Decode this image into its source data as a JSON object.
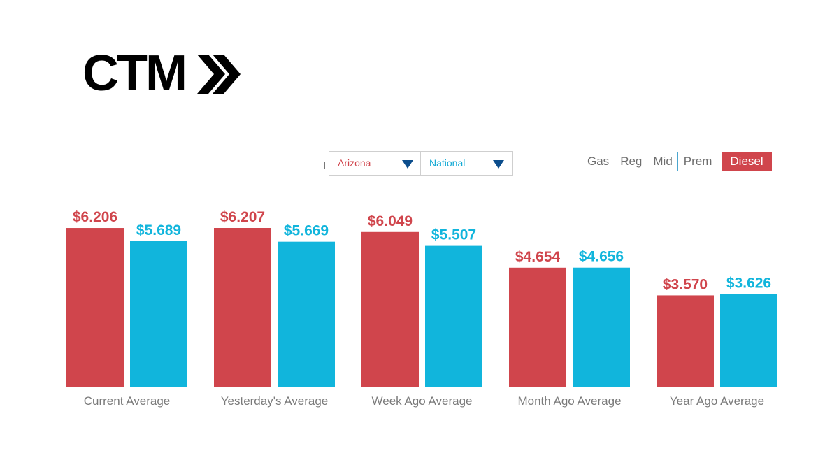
{
  "logo": {
    "text": "CTM"
  },
  "selector": {
    "state": {
      "label": "Arizona",
      "color": "#d0454c"
    },
    "comparison": {
      "label": "National",
      "color": "#11a9d4"
    }
  },
  "fuel_tabs": [
    {
      "label": "Gas",
      "active": false
    },
    {
      "label": "Reg",
      "active": false
    },
    {
      "label": "Mid",
      "active": false
    },
    {
      "label": "Prem",
      "active": false
    },
    {
      "label": "Diesel",
      "active": true
    }
  ],
  "colors": {
    "state": "#d0454c",
    "national": "#11b5dc",
    "axis_label": "#7a7a7a"
  },
  "chart_data": {
    "type": "bar",
    "categories": [
      "Current Average",
      "Yesterday's Average",
      "Week Ago Average",
      "Month Ago Average",
      "Year Ago Average"
    ],
    "series": [
      {
        "name": "Arizona",
        "values": [
          6.206,
          6.207,
          6.049,
          4.654,
          3.57
        ],
        "labels": [
          "$6.206",
          "$6.207",
          "$6.049",
          "$4.654",
          "$3.570"
        ]
      },
      {
        "name": "National",
        "values": [
          5.689,
          5.669,
          5.507,
          4.656,
          3.626
        ],
        "labels": [
          "$5.689",
          "$5.669",
          "$5.507",
          "$4.656",
          "$3.626"
        ]
      }
    ],
    "title": "",
    "xlabel": "",
    "ylabel": "",
    "ylim": [
      0,
      6.207
    ],
    "grid": false,
    "legend": "none"
  }
}
